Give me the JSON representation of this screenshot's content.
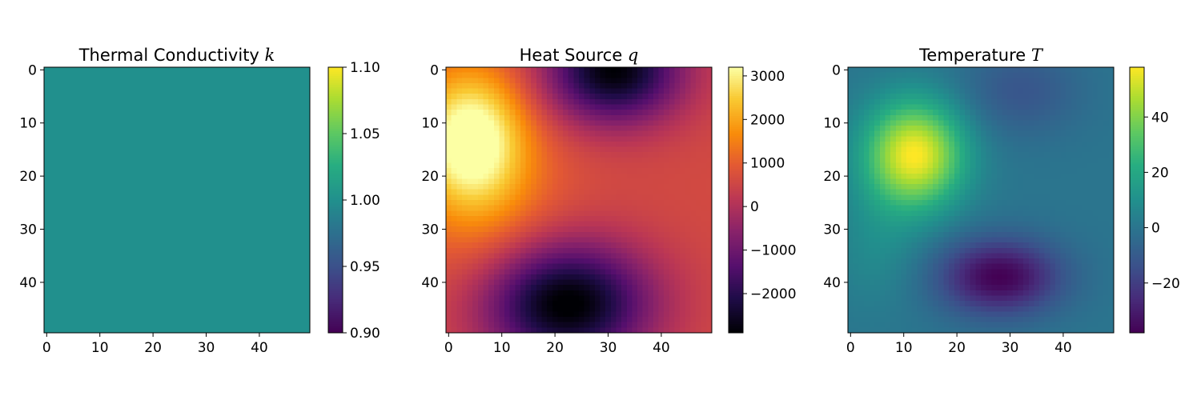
{
  "chart_data": [
    {
      "type": "heatmap",
      "title": "Thermal Conductivity",
      "title_var": "k",
      "grid_size": [
        50,
        50
      ],
      "x_ticks": [
        "0",
        "10",
        "20",
        "30",
        "40"
      ],
      "y_ticks": [
        "0",
        "10",
        "20",
        "30",
        "40"
      ],
      "x_tick_values": [
        0,
        10,
        20,
        30,
        40
      ],
      "y_tick_values": [
        0,
        10,
        20,
        30,
        40
      ],
      "colormap": "viridis",
      "vmin": 0.9,
      "vmax": 1.1,
      "colorbar_ticks": [
        "1.10",
        "1.05",
        "1.00",
        "0.95",
        "0.90"
      ],
      "colorbar_tick_values": [
        1.1,
        1.05,
        1.0,
        0.95,
        0.9
      ],
      "field": {
        "kind": "constant",
        "value": 1.0
      }
    },
    {
      "type": "heatmap",
      "title": "Heat Source",
      "title_var": "q",
      "grid_size": [
        50,
        50
      ],
      "x_ticks": [
        "0",
        "10",
        "20",
        "30",
        "40"
      ],
      "y_ticks": [
        "0",
        "10",
        "20",
        "30",
        "40"
      ],
      "x_tick_values": [
        0,
        10,
        20,
        30,
        40
      ],
      "y_tick_values": [
        0,
        10,
        20,
        30,
        40
      ],
      "colormap": "inferno",
      "vmin": -2900,
      "vmax": 3200,
      "colorbar_ticks": [
        "3000",
        "2000",
        "1000",
        "0",
        "−1000",
        "−2000"
      ],
      "colorbar_tick_values": [
        3000,
        2000,
        1000,
        0,
        -1000,
        -2000
      ],
      "field": {
        "kind": "gaussians",
        "base": 600,
        "components": [
          {
            "row": 13,
            "col": 4,
            "amp": 2800,
            "sr": 9,
            "sc": 7
          },
          {
            "row": 0,
            "col": 31,
            "amp": -3500,
            "sr": 7,
            "sc": 9
          },
          {
            "row": 44,
            "col": 22,
            "amp": -3700,
            "sr": 8,
            "sc": 11
          },
          {
            "row": 25,
            "col": 8,
            "amp": 700,
            "sr": 14,
            "sc": 10
          }
        ]
      }
    },
    {
      "type": "heatmap",
      "title": "Temperature",
      "title_var": "T",
      "grid_size": [
        50,
        50
      ],
      "x_ticks": [
        "0",
        "10",
        "20",
        "30",
        "40"
      ],
      "y_ticks": [
        "0",
        "10",
        "20",
        "30",
        "40"
      ],
      "x_tick_values": [
        0,
        10,
        20,
        30,
        40
      ],
      "y_tick_values": [
        0,
        10,
        20,
        30,
        40
      ],
      "colormap": "viridis",
      "vmin": -38,
      "vmax": 58,
      "colorbar_ticks": [
        "40",
        "20",
        "0",
        "−20"
      ],
      "colorbar_tick_values": [
        40,
        20,
        0,
        -20
      ],
      "field": {
        "kind": "gaussians",
        "base": 0,
        "components": [
          {
            "row": 16,
            "col": 12,
            "amp": 58,
            "sr": 7,
            "sc": 6.5
          },
          {
            "row": 39,
            "col": 28,
            "amp": -38,
            "sr": 5,
            "sc": 8
          },
          {
            "row": 4,
            "col": 32,
            "amp": -12,
            "sr": 6,
            "sc": 8
          },
          {
            "row": 33,
            "col": 5,
            "amp": 8,
            "sr": 8,
            "sc": 6
          }
        ]
      }
    }
  ]
}
